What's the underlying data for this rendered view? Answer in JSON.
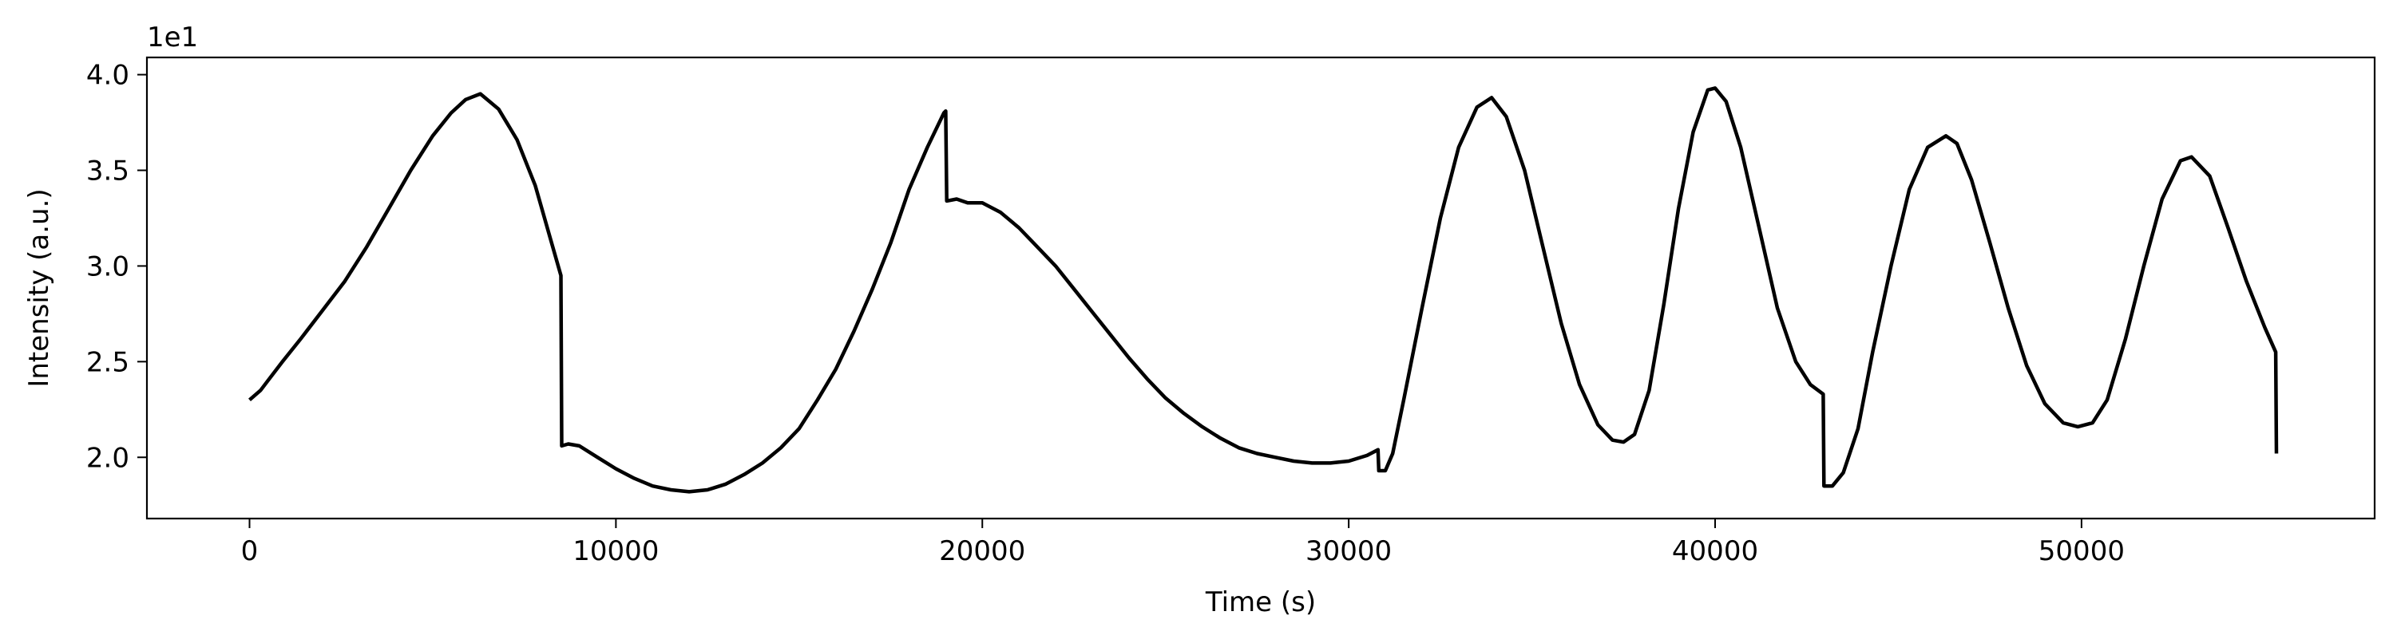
{
  "chart_data": {
    "type": "line",
    "title": "",
    "xlabel": "Time (s)",
    "ylabel": "Intensity (a.u.)",
    "y_scale_label": "1e1",
    "xlim": [
      -2800,
      58000
    ],
    "ylim": [
      1.68,
      4.09
    ],
    "x_ticks": [
      0,
      10000,
      20000,
      30000,
      40000,
      50000
    ],
    "x_tick_labels": [
      "0",
      "10000",
      "20000",
      "30000",
      "40000",
      "50000"
    ],
    "y_ticks": [
      2.0,
      2.5,
      3.0,
      3.5,
      4.0
    ],
    "y_tick_labels": [
      "2.0",
      "2.5",
      "3.0",
      "3.5",
      "4.0"
    ],
    "grid": false,
    "legend": "none",
    "line_color": "#000000",
    "series": [
      {
        "x": [
          0,
          300,
          500,
          900,
          1400,
          2000,
          2600,
          3200,
          3800,
          4400,
          5000,
          5500,
          5900,
          6300,
          6800,
          7300,
          7800,
          8200,
          8500,
          8520,
          8700,
          9000,
          9500,
          10000,
          10500,
          11000,
          11500,
          12000,
          12500,
          13000,
          13500,
          14000,
          14500,
          15000,
          15500,
          16000,
          16500,
          17000,
          17500,
          18000,
          18500,
          18950,
          19000,
          19030,
          19300,
          19600,
          20000,
          20500,
          21000,
          21500,
          22000,
          22500,
          23000,
          23500,
          24000,
          24500,
          25000,
          25500,
          26000,
          26500,
          27000,
          27500,
          28000,
          28500,
          29000,
          29500,
          30000,
          30500,
          30800,
          30820,
          31000,
          31200,
          31500,
          32000,
          32500,
          33000,
          33500,
          33900,
          34300,
          34800,
          35300,
          35800,
          36300,
          36800,
          37200,
          37500,
          37800,
          38200,
          38600,
          39000,
          39400,
          39800,
          40000,
          40300,
          40700,
          41200,
          41700,
          42200,
          42600,
          42950,
          42970,
          43200,
          43500,
          43900,
          44300,
          44800,
          45300,
          45800,
          46300,
          46600,
          47000,
          47500,
          48000,
          48500,
          49000,
          49500,
          49900,
          50300,
          50700,
          51200,
          51700,
          52200,
          52700,
          53000,
          53500,
          54000,
          54500,
          55000,
          55300,
          55320
        ],
        "y": [
          2.3,
          2.35,
          2.4,
          2.5,
          2.62,
          2.77,
          2.92,
          3.1,
          3.3,
          3.5,
          3.68,
          3.8,
          3.87,
          3.9,
          3.82,
          3.66,
          3.42,
          3.15,
          2.95,
          2.06,
          2.07,
          2.06,
          2.0,
          1.94,
          1.89,
          1.85,
          1.83,
          1.82,
          1.83,
          1.86,
          1.91,
          1.97,
          2.05,
          2.15,
          2.3,
          2.46,
          2.66,
          2.88,
          3.12,
          3.4,
          3.62,
          3.8,
          3.81,
          3.34,
          3.35,
          3.33,
          3.33,
          3.28,
          3.2,
          3.1,
          3.0,
          2.88,
          2.76,
          2.64,
          2.52,
          2.41,
          2.31,
          2.23,
          2.16,
          2.1,
          2.05,
          2.02,
          2.0,
          1.98,
          1.97,
          1.97,
          1.98,
          2.01,
          2.04,
          1.93,
          1.93,
          2.02,
          2.3,
          2.78,
          3.25,
          3.62,
          3.83,
          3.88,
          3.78,
          3.5,
          3.1,
          2.7,
          2.38,
          2.17,
          2.09,
          2.08,
          2.12,
          2.35,
          2.8,
          3.3,
          3.7,
          3.92,
          3.93,
          3.86,
          3.62,
          3.2,
          2.78,
          2.5,
          2.38,
          2.33,
          1.85,
          1.85,
          1.92,
          2.15,
          2.55,
          3.0,
          3.4,
          3.62,
          3.68,
          3.64,
          3.45,
          3.12,
          2.78,
          2.48,
          2.28,
          2.18,
          2.16,
          2.18,
          2.3,
          2.62,
          3.0,
          3.35,
          3.55,
          3.57,
          3.47,
          3.2,
          2.92,
          2.68,
          2.55,
          2.02
        ]
      }
    ]
  }
}
